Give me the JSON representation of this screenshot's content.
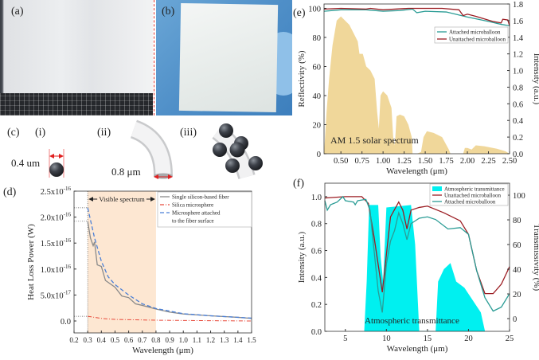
{
  "panels": {
    "a": {
      "label": "(a)"
    },
    "b": {
      "label": "(b)"
    },
    "c": {
      "label": "(c)",
      "sub_i": "(i)",
      "sub_ii": "(ii)",
      "sub_iii": "(iii)",
      "dim_i": "0.4 um",
      "dim_ii": "0.8 μm"
    },
    "d": {
      "label": "(d)"
    },
    "e": {
      "label": "(e)"
    },
    "f": {
      "label": "(f)"
    }
  },
  "colors": {
    "solar": "#f0d79a",
    "attached": "#2a9c95",
    "unattached": "#9b1c22",
    "fiber": "#8a8a8a",
    "silica": "#e84b3c",
    "microsphere": "#4a7fd6",
    "visible_band": "#fde7d2",
    "atmos": "#00f0f0"
  },
  "chart_data": [
    {
      "id": "e",
      "type": "line+area",
      "xlabel": "Wavelength (μm)",
      "ylabel": "Reflectivity (%)",
      "y2label": "Intensity (a.u.)",
      "xlim": [
        0.3,
        2.5
      ],
      "ylim": [
        0,
        103
      ],
      "y2lim": [
        0,
        1.8
      ],
      "xticks": [
        "0.50",
        "0.75",
        "1.00",
        "1.25",
        "1.50",
        "1.75",
        "2.00",
        "2.25",
        "2.50"
      ],
      "yticks": [
        "0",
        "20",
        "40",
        "60",
        "80",
        "100"
      ],
      "y2ticks": [
        "0.0",
        "0.2",
        "0.4",
        "0.6",
        "0.8",
        "1.0",
        "1.2",
        "1.4",
        "1.6",
        "1.8"
      ],
      "annotation": "AM 1.5 solar spectrum",
      "legend_position": "top-right",
      "area": {
        "name": "AM 1.5 solar spectrum",
        "axis": "right",
        "x": [
          0.3,
          0.33,
          0.36,
          0.4,
          0.45,
          0.5,
          0.55,
          0.6,
          0.65,
          0.7,
          0.72,
          0.76,
          0.8,
          0.85,
          0.9,
          0.93,
          0.95,
          0.97,
          1.0,
          1.05,
          1.1,
          1.12,
          1.14,
          1.16,
          1.2,
          1.25,
          1.3,
          1.34,
          1.35,
          1.4,
          1.45,
          1.48,
          1.52,
          1.6,
          1.7,
          1.78,
          1.8,
          1.95,
          1.97,
          2.0,
          2.05,
          2.1,
          2.2,
          2.35,
          2.45,
          2.5
        ],
        "y": [
          0,
          0.5,
          0.9,
          1.3,
          1.6,
          1.65,
          1.6,
          1.55,
          1.45,
          1.35,
          1.2,
          1.2,
          1.05,
          1.0,
          0.9,
          0.5,
          0.3,
          0.7,
          0.75,
          0.7,
          0.55,
          0.2,
          0.1,
          0.45,
          0.47,
          0.45,
          0.35,
          0.2,
          0,
          0,
          0.02,
          0.2,
          0.27,
          0.25,
          0.2,
          0.05,
          0,
          0,
          0.07,
          0.07,
          0.05,
          0.1,
          0.09,
          0.06,
          0.03,
          0
        ]
      },
      "series": [
        {
          "name": "Attached microballoon",
          "x": [
            0.3,
            0.5,
            0.8,
            1.0,
            1.2,
            1.35,
            1.4,
            1.5,
            1.75,
            2.0,
            2.25,
            2.4,
            2.5
          ],
          "y": [
            98,
            99,
            99,
            98,
            98.5,
            99.5,
            97,
            98,
            97.5,
            94,
            91,
            89,
            88
          ]
        },
        {
          "name": "Unattached microballoon",
          "x": [
            0.3,
            0.5,
            0.8,
            0.85,
            1.0,
            1.3,
            1.7,
            1.9,
            1.95,
            2.0,
            2.1,
            2.3,
            2.4,
            2.42,
            2.48,
            2.5
          ],
          "y": [
            99.5,
            100,
            99.5,
            100,
            99,
            100,
            100,
            99,
            95,
            96,
            94.5,
            91,
            90,
            92.5,
            92,
            88
          ]
        }
      ]
    },
    {
      "id": "d",
      "type": "line",
      "xlabel": "Wavelength (μm)",
      "ylabel": "Heat Loss Power (W)",
      "xlim": [
        0.2,
        1.5
      ],
      "ylim": [
        -2.3e-17,
        2.5e-16
      ],
      "xticks": [
        "0.2",
        "0.3",
        "0.4",
        "0.5",
        "0.6",
        "0.7",
        "0.8",
        "0.9",
        "1.0",
        "1.1",
        "1.2",
        "1.3",
        "1.4",
        "1.5"
      ],
      "yticks": [
        {
          "base": "0.0",
          "exp": ""
        },
        {
          "base": "5.0x10",
          "exp": "-17"
        },
        {
          "base": "1.0x10",
          "exp": "-16"
        },
        {
          "base": "1.5x10",
          "exp": "-16"
        },
        {
          "base": "2.0x10",
          "exp": "-16"
        },
        {
          "base": "2.5x10",
          "exp": "-16"
        }
      ],
      "band": {
        "label": "Visible spectrum",
        "x": [
          0.3,
          0.8
        ]
      },
      "legend_position": "top-right",
      "series": [
        {
          "name": "Single silicon-based fiber",
          "x": [
            0.3,
            0.32,
            0.34,
            0.35,
            0.37,
            0.4,
            0.43,
            0.5,
            0.55,
            0.6,
            0.65,
            0.7,
            0.8,
            0.9,
            1.0,
            1.2,
            1.4,
            1.5
          ],
          "y": [
            1.92e-16,
            1.6e-16,
            1.45e-16,
            1.52e-16,
            1.08e-16,
            1.05e-16,
            7.8e-17,
            6.5e-17,
            4.8e-17,
            4.5e-17,
            3.3e-17,
            3e-17,
            2.3e-17,
            1.7e-17,
            1.35e-17,
            1e-17,
            7e-18,
            5e-18
          ]
        },
        {
          "name": "Silica microsphere",
          "x": [
            0.3,
            0.4,
            0.5,
            0.8,
            1.0,
            1.5
          ],
          "y": [
            9e-18,
            5e-18,
            3e-18,
            1.5e-18,
            1e-18,
            0
          ]
        },
        {
          "name": "Microsphere attached",
          "name_line2": "to the fiber surface",
          "x": [
            0.3,
            0.35,
            0.4,
            0.45,
            0.5,
            0.6,
            0.7,
            0.8,
            1.0,
            1.2,
            1.5
          ],
          "y": [
            2.18e-16,
            1.6e-16,
            1.15e-16,
            8.5e-17,
            7e-17,
            5e-17,
            3.3e-17,
            2.4e-17,
            1.4e-17,
            1e-17,
            5.5e-18
          ]
        }
      ]
    },
    {
      "id": "f",
      "type": "line+area",
      "xlabel": "Wavelength (μm)",
      "ylabel": "Intensity (a.u.)",
      "y2label": "Transmissivity (%)",
      "xlim": [
        2.5,
        25
      ],
      "ylim": [
        0,
        1.1
      ],
      "y2lim": [
        -10.3,
        109.7
      ],
      "xticks": [
        "5",
        "10",
        "15",
        "20",
        "25"
      ],
      "yticks": [
        "0.0",
        "0.2",
        "0.4",
        "0.6",
        "0.8",
        "1.0"
      ],
      "y2ticks": [
        "0",
        "20",
        "40",
        "60",
        "80",
        "100"
      ],
      "annotation": "Atmospheric transmittance",
      "legend_position": "top-right",
      "area": {
        "name": "Atmospheric transmittance",
        "axis": "right",
        "x": [
          7.3,
          7.6,
          7.9,
          9.0,
          9.3,
          9.6,
          10.0,
          13.0,
          13.5,
          14.0,
          16.0,
          16.3,
          17.0,
          17.8,
          18.5,
          19.5,
          20.5,
          21.5,
          22.0
        ],
        "y": [
          -10,
          30,
          92,
          92,
          50,
          30,
          90,
          92,
          60,
          -10,
          -10,
          30,
          40,
          45,
          30,
          25,
          15,
          5,
          -10
        ]
      },
      "series": [
        {
          "name": "Unattached microballoon",
          "x": [
            2.5,
            5,
            7,
            7.8,
            8.5,
            9.5,
            10.5,
            11.5,
            12,
            12.5,
            13,
            14,
            15,
            17,
            19,
            20,
            21,
            22,
            23,
            24,
            25
          ],
          "y": [
            0.99,
            1.0,
            1.0,
            0.95,
            0.7,
            0.29,
            0.85,
            0.96,
            0.9,
            0.76,
            0.9,
            0.92,
            0.93,
            0.88,
            0.82,
            0.72,
            0.45,
            0.28,
            0.28,
            0.35,
            0.48
          ]
        },
        {
          "name": "Attached microballoon",
          "x": [
            2.5,
            2.8,
            3.2,
            4,
            4.7,
            5,
            6,
            6.2,
            6.5,
            7.5,
            8,
            8.5,
            9,
            9.5,
            10,
            10.5,
            11,
            11.5,
            12,
            12.5,
            13,
            14,
            15,
            16,
            17.5,
            19,
            20,
            21,
            22,
            23,
            24,
            25
          ],
          "y": [
            0.97,
            0.9,
            0.94,
            0.96,
            1.0,
            0.97,
            0.96,
            0.94,
            0.97,
            0.98,
            0.9,
            0.6,
            0.3,
            0.14,
            0.5,
            0.67,
            0.75,
            0.88,
            0.8,
            0.68,
            0.8,
            0.84,
            0.85,
            0.83,
            0.76,
            0.77,
            0.72,
            0.45,
            0.25,
            0.15,
            0.18,
            0.28
          ]
        }
      ]
    }
  ]
}
